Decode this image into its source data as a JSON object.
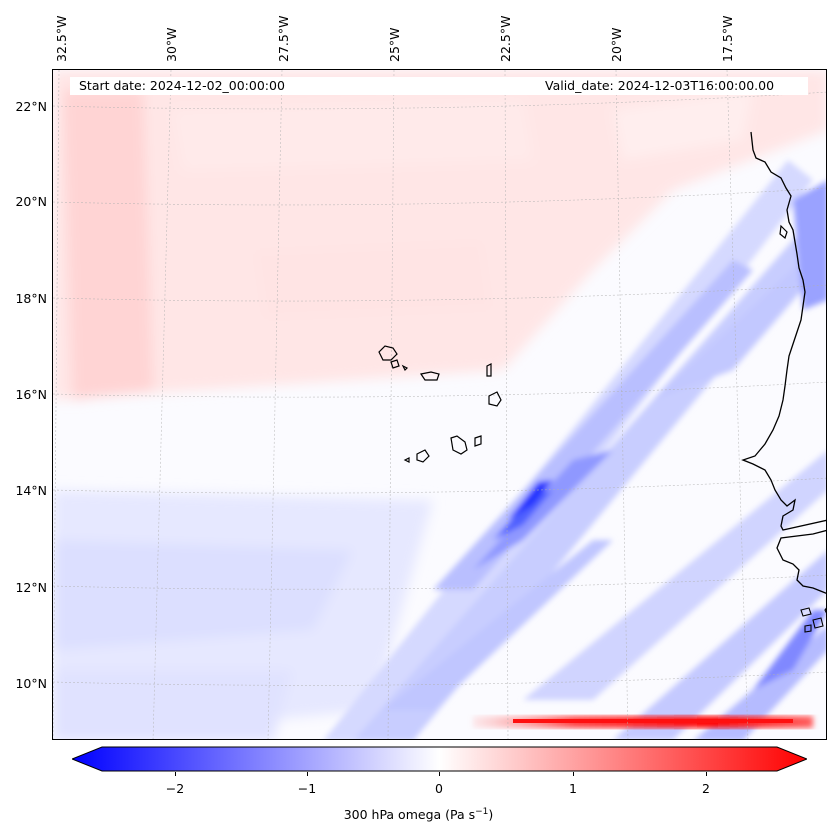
{
  "header": {
    "start_date": "Start date: 2024-12-02_00:00:00",
    "valid_date": "Valid_date: 2024-12-03T16:00:00.00"
  },
  "axes": {
    "lat_labels": [
      "22°N",
      "20°N",
      "18°N",
      "16°N",
      "14°N",
      "12°N",
      "10°N"
    ],
    "lon_labels": [
      "32.5°W",
      "30°W",
      "27.5°W",
      "25°W",
      "22.5°W",
      "20°W",
      "17.5°W"
    ]
  },
  "colorbar": {
    "tick_labels": [
      "−2",
      "−1",
      "0",
      "1",
      "2"
    ],
    "title_main": "300 hPa omega (Pa s",
    "title_exp": "−1",
    "title_close": ")",
    "min": -2.7,
    "max": 2.7,
    "colors": {
      "negative": "#0000ff",
      "zero": "#ffffff",
      "positive": "#ff0000"
    }
  },
  "map": {
    "field": "300 hPa omega",
    "features": [
      "Cabo Verde islands",
      "West African coastline"
    ]
  }
}
